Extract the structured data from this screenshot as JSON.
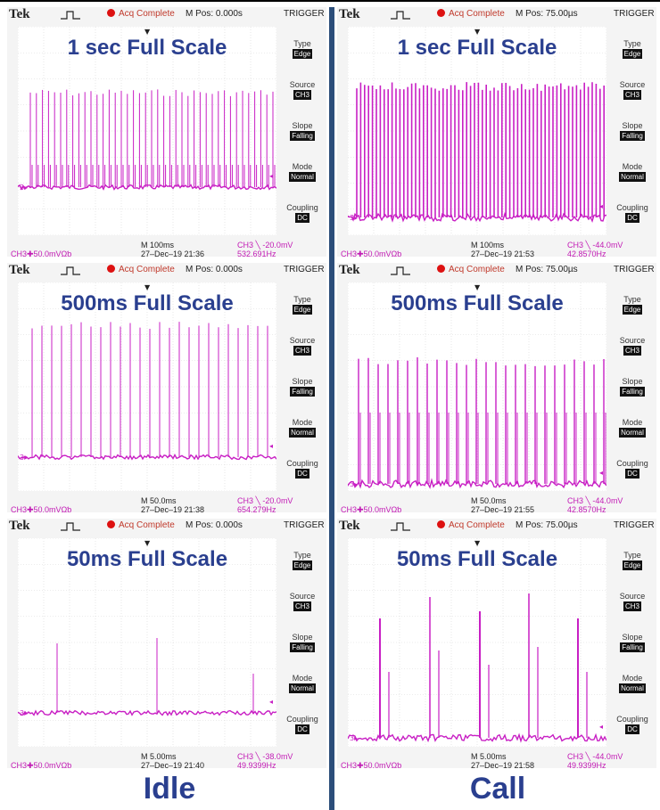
{
  "colors": {
    "trace": "#c81fc4",
    "title": "#2a3f8f",
    "divider": "#2c4e7a",
    "acq_dot": "#dd1111"
  },
  "header": {
    "brand": "Tek",
    "acq": "Acq Complete",
    "trigger": "TRIGGER"
  },
  "side_menu": [
    {
      "label": "Type",
      "value": "Edge"
    },
    {
      "label": "Source",
      "value": "CH3"
    },
    {
      "label": "Slope",
      "value": "Falling"
    },
    {
      "label": "Mode",
      "value": "Normal"
    },
    {
      "label": "Coupling",
      "value": "DC"
    }
  ],
  "scopes": [
    {
      "title": "1 sec Full Scale",
      "mpos": "M Pos: 0.000s",
      "timebase": "M 100ms",
      "ch3_trig": "CH3 ╲ -20.0mV",
      "datetime": "27–Dec–19 21:36",
      "freq": "532.691Hz",
      "ch3_scale": "CH3✚50.0mVΩƅ"
    },
    {
      "title": "1 sec Full Scale",
      "mpos": "M Pos: 75.00µs",
      "timebase": "M 100ms",
      "ch3_trig": "CH3 ╲ -44.0mV",
      "datetime": "27–Dec–19 21:53",
      "freq": "42.8570Hz",
      "ch3_scale": "CH3✚50.0mVΩƅ"
    },
    {
      "title": "500ms Full Scale",
      "mpos": "M Pos: 0.000s",
      "timebase": "M 50.0ms",
      "ch3_trig": "CH3 ╲ -20.0mV",
      "datetime": "27–Dec–19 21:38",
      "freq": "654.279Hz",
      "ch3_scale": "CH3✚50.0mVΩƅ"
    },
    {
      "title": "500ms Full Scale",
      "mpos": "M Pos: 75.00µs",
      "timebase": "M 50.0ms",
      "ch3_trig": "CH3 ╲ -44.0mV",
      "datetime": "27–Dec–19 21:55",
      "freq": "42.8570Hz",
      "ch3_scale": "CH3✚50.0mVΩƅ"
    },
    {
      "title": "50ms Full Scale",
      "mpos": "M Pos: 0.000s",
      "timebase": "M 5.00ms",
      "ch3_trig": "CH3 ╲ -38.0mV",
      "datetime": "27–Dec–19 21:40",
      "freq": "49.9399Hz",
      "ch3_scale": "CH3✚50.0mVΩƅ"
    },
    {
      "title": "50ms Full Scale",
      "mpos": "M Pos: 75.00µs",
      "timebase": "M 5.00ms",
      "ch3_trig": "CH3 ╲ -44.0mV",
      "datetime": "27–Dec–19 21:58",
      "freq": "49.9399Hz",
      "ch3_scale": "CH3✚50.0mVΩƅ"
    }
  ],
  "bottom_labels": {
    "left": "Idle",
    "right": "Call"
  }
}
